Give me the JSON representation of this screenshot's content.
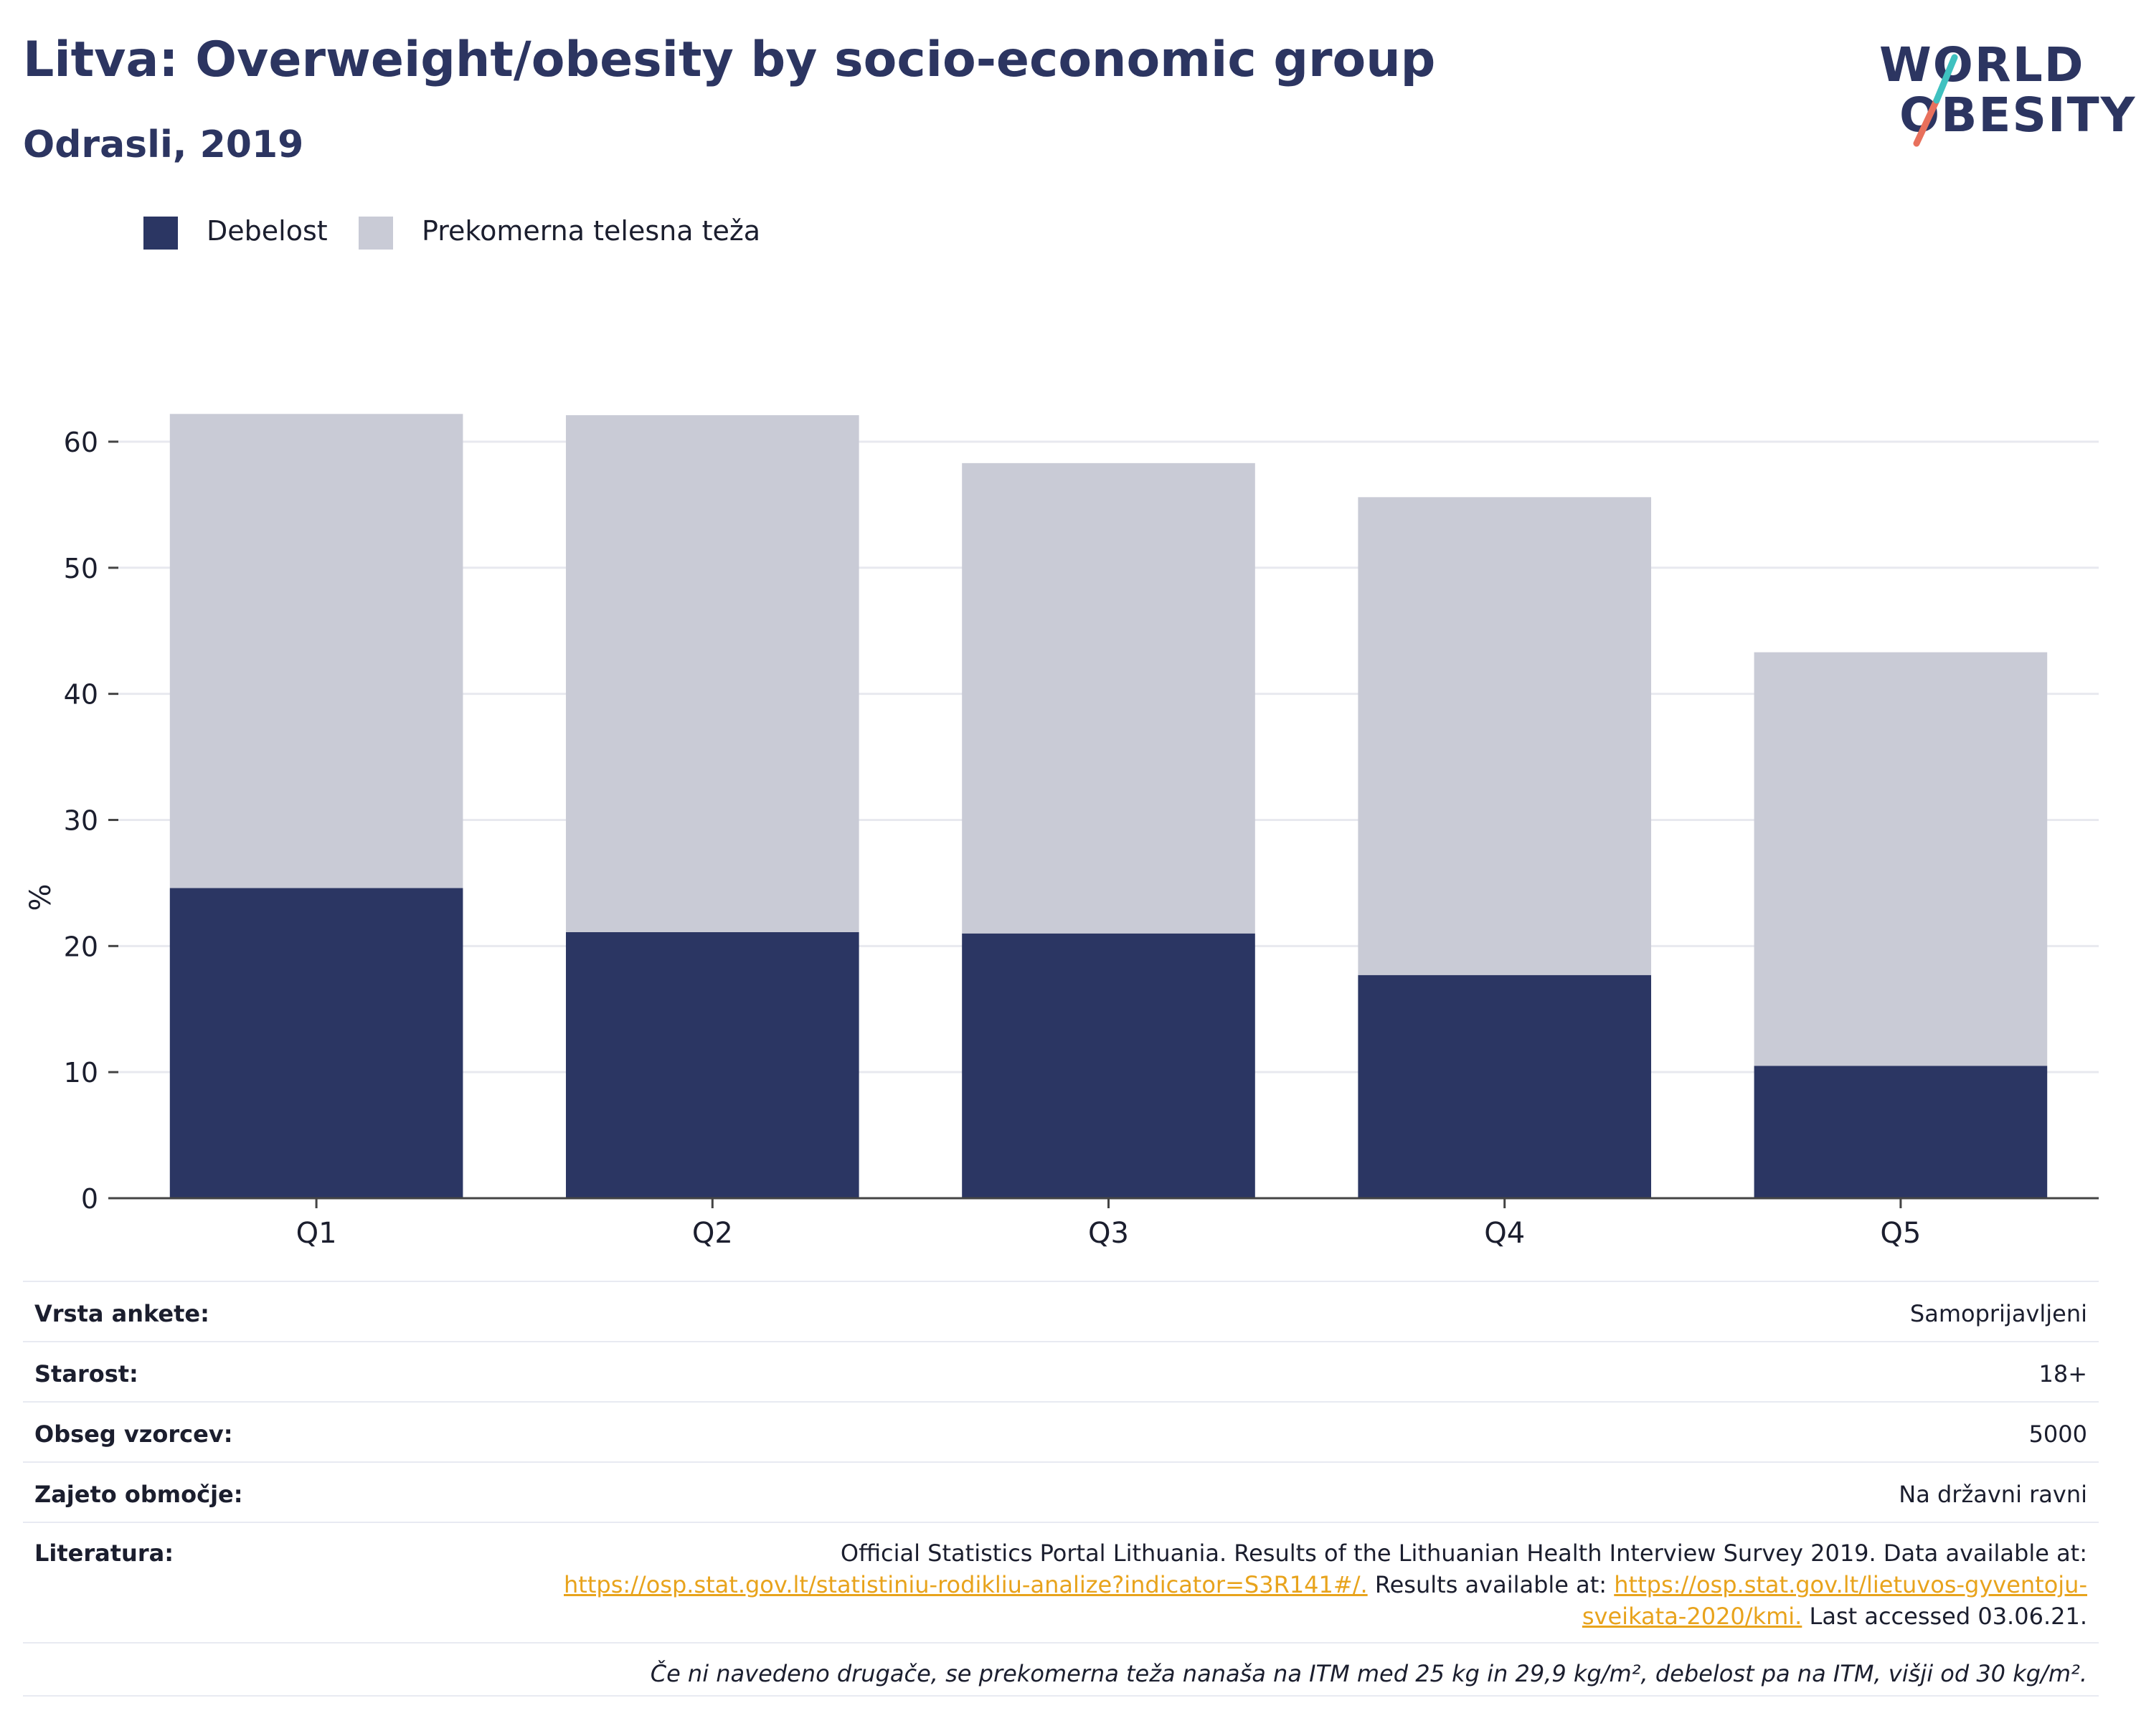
{
  "title": "Litva: Overweight/obesity by socio-economic group",
  "subtitle": "Odrasli, 2019",
  "logo": {
    "line1": "WORLD",
    "line2": "OBESITY",
    "accent_teal": "#3fc1c0",
    "accent_red": "#e8705c"
  },
  "colors": {
    "obesity": "#2b3663",
    "overweight": "#c9cbd6",
    "grid": "#e8e9ef",
    "text": "#1b1e2e",
    "link": "#e8a31c"
  },
  "chart_data": {
    "type": "bar",
    "stacked": true,
    "categories": [
      "Q1",
      "Q2",
      "Q3",
      "Q4",
      "Q5"
    ],
    "series": [
      {
        "name": "Debelost",
        "values": [
          24.6,
          21.1,
          21.0,
          17.7,
          10.5
        ]
      },
      {
        "name": "Prekomerna telesna teža",
        "values": [
          37.6,
          41.0,
          37.3,
          37.9,
          32.8
        ]
      }
    ],
    "totals": [
      62.2,
      62.1,
      58.3,
      55.6,
      43.3
    ],
    "ylabel": "%",
    "xlabel": "",
    "ylim": [
      0,
      62.5
    ],
    "yticks": [
      0,
      10,
      20,
      30,
      40,
      50,
      60
    ],
    "grid": true,
    "legend_position": "top-left"
  },
  "info": {
    "survey_type": {
      "label": "Vrsta ankete:",
      "value": "Samoprijavljeni"
    },
    "age": {
      "label": "Starost:",
      "value": "18+"
    },
    "sample": {
      "label": "Obseg vzorcev:",
      "value": "5000"
    },
    "area": {
      "label": "Zajeto območje:",
      "value": "Na državni ravni"
    },
    "references": {
      "label": "Literatura:",
      "text1": "Official Statistics Portal Lithuania. Results of the Lithuanian Health Interview Survey 2019. Data available at:",
      "link1": "https://osp.stat.gov.lt/statistiniu-rodikliu-analize?indicator=S3R141#/.",
      "text2": " Results available at: ",
      "link2a": "https://osp.stat.gov.lt/lietuvos-gyventoju-",
      "link2b": "sveikata-2020/kmi.",
      "text3": " Last accessed 03.06.21."
    },
    "note": "Če ni navedeno drugače, se prekomerna teža nanaša na ITM med 25 kg in 29,9 kg/m², debelost pa na ITM, višji od 30 kg/m²."
  }
}
